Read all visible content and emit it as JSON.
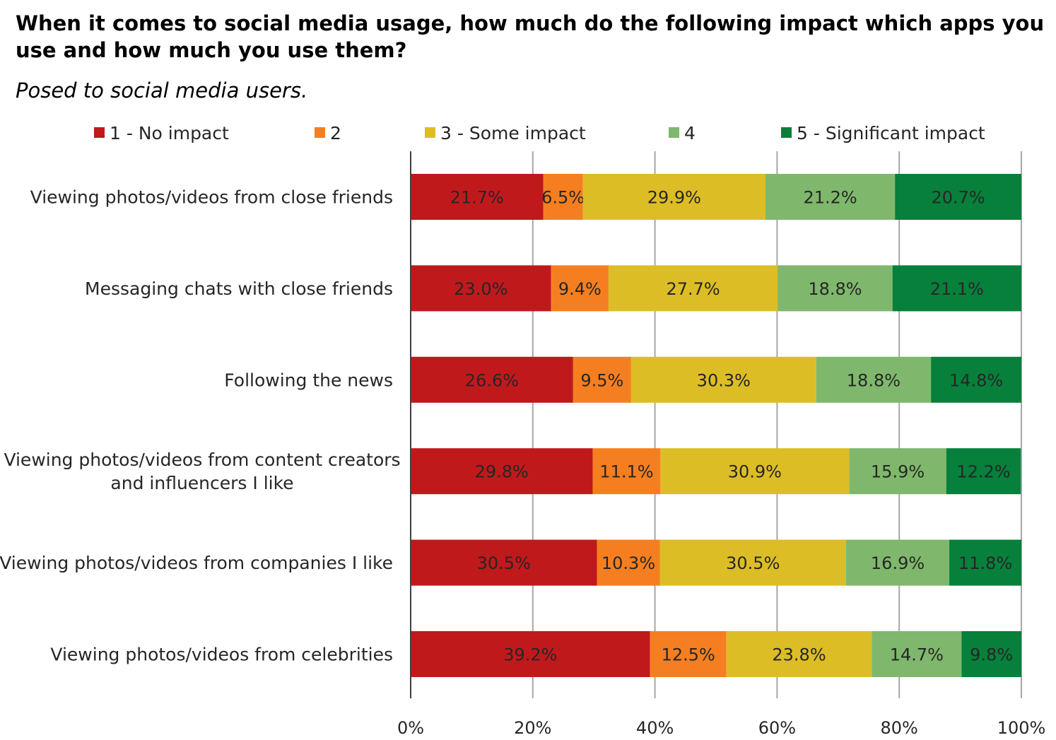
{
  "title": "When it comes to social media usage, how much do the following impact which apps you use and how much you use them?",
  "subtitle": "Posed to social media users.",
  "chart_data": {
    "type": "bar",
    "orientation": "horizontal",
    "stacked": true,
    "percent_stacked": true,
    "categories": [
      "Viewing photos/videos from close friends",
      "Messaging chats with close friends",
      "Following the news",
      "Viewing photos/videos from content creators and influencers I like",
      "Viewing photos/videos from companies I like",
      "Viewing photos/videos from celebrities"
    ],
    "series": [
      {
        "name": "1 - No impact",
        "color": "#C0191C",
        "values": [
          21.7,
          23.0,
          26.6,
          29.8,
          30.5,
          39.2
        ],
        "labels": [
          "21.7%",
          "23.0%",
          "26.6%",
          "29.8%",
          "30.5%",
          "39.2%"
        ]
      },
      {
        "name": "2",
        "color": "#F57F20",
        "values": [
          6.5,
          9.4,
          9.5,
          11.1,
          10.3,
          12.5
        ],
        "labels": [
          "6.5%",
          "9.4%",
          "9.5%",
          "11.1%",
          "10.3%",
          "12.5%"
        ]
      },
      {
        "name": "3 - Some impact",
        "color": "#DDBD26",
        "values": [
          29.9,
          27.7,
          30.3,
          30.9,
          30.5,
          23.8
        ],
        "labels": [
          "29.9%",
          "27.7%",
          "30.3%",
          "30.9%",
          "30.5%",
          "23.8%"
        ]
      },
      {
        "name": "4",
        "color": "#7FB86C",
        "values": [
          21.2,
          18.8,
          18.8,
          15.9,
          16.9,
          14.7
        ],
        "labels": [
          "21.2%",
          "18.8%",
          "18.8%",
          "15.9%",
          "16.9%",
          "14.7%"
        ]
      },
      {
        "name": "5 - Significant impact",
        "color": "#06803B",
        "values": [
          20.7,
          21.1,
          14.8,
          12.2,
          11.8,
          9.8
        ],
        "labels": [
          "20.7%",
          "21.1%",
          "14.8%",
          "12.2%",
          "11.8%",
          "9.8%"
        ]
      }
    ],
    "xlim": [
      0,
      100
    ],
    "x_ticks": [
      "0%",
      "20%",
      "40%",
      "60%",
      "80%",
      "100%"
    ],
    "grid": true,
    "legend_position": "top"
  }
}
